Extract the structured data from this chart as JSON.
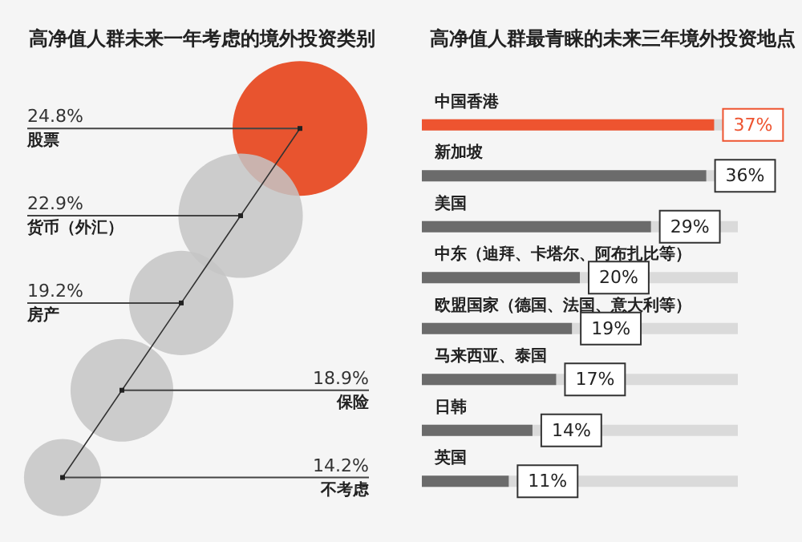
{
  "chart_data": [
    {
      "type": "other",
      "title": "高净值人群未来一年考虑的境外投资类别",
      "categories": [
        "股票",
        "货币（外汇）",
        "房产",
        "保险",
        "不考虑"
      ],
      "values": [
        24.8,
        22.9,
        19.2,
        18.9,
        14.2
      ],
      "colors": [
        "#e8542f",
        "#c4c4c4",
        "#c4c4c4",
        "#c4c4c4",
        "#c4c4c4"
      ],
      "value_labels": [
        "24.8%",
        "22.9%",
        "19.2%",
        "18.9%",
        "14.2%"
      ]
    },
    {
      "type": "bar",
      "orientation": "horizontal",
      "title": "高净值人群最青睐的未来三年境外投资地点",
      "categories": [
        "中国香港",
        "新加坡",
        "美国",
        "中东（迪拜、卡塔尔、阿布扎比等）",
        "欧盟国家（德国、法国、意大利等）",
        "马来西亚、泰国",
        "日韩",
        "英国"
      ],
      "values": [
        37,
        36,
        29,
        20,
        19,
        17,
        14,
        11
      ],
      "colors": [
        "#ee5430",
        "#6b6b6b",
        "#6b6b6b",
        "#6b6b6b",
        "#6b6b6b",
        "#6b6b6b",
        "#6b6b6b",
        "#6b6b6b"
      ],
      "value_labels": [
        "37%",
        "36%",
        "29%",
        "20%",
        "19%",
        "17%",
        "14%",
        "11%"
      ]
    }
  ]
}
